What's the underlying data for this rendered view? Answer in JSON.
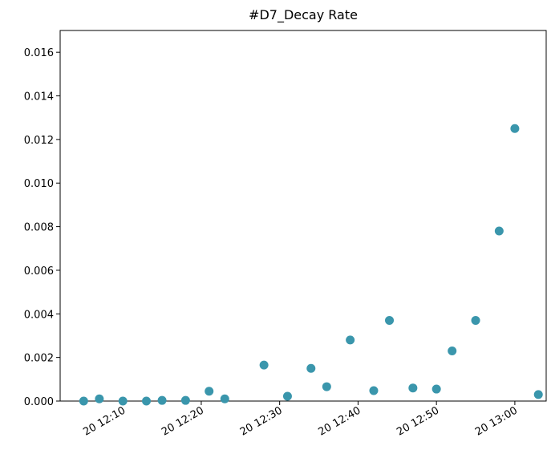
{
  "chart_data": {
    "type": "scatter",
    "title": "#D7_Decay Rate",
    "color": "#3a96ac",
    "x": [
      "20 12:05",
      "20 12:07",
      "20 12:10",
      "20 12:13",
      "20 12:15",
      "20 12:18",
      "20 12:21",
      "20 12:23",
      "20 12:28",
      "20 12:31",
      "20 12:34",
      "20 12:36",
      "20 12:39",
      "20 12:42",
      "20 12:44",
      "20 12:47",
      "20 12:50",
      "20 12:52",
      "20 12:55",
      "20 12:58",
      "20 13:00",
      "20 13:03"
    ],
    "values": [
      0,
      0.0001,
      0,
      0,
      3e-05,
      3e-05,
      0.00045,
      0.0001,
      0.00165,
      0.00022,
      0.0015,
      0.00066,
      0.0028,
      0.00048,
      0.0037,
      0.0006,
      0.00055,
      0.0023,
      0.0037,
      0.0078,
      0.0125,
      0.0003
    ],
    "xlim": [
      "20 12:02",
      "20 13:04"
    ],
    "xticks": [
      "20 12:10",
      "20 12:20",
      "20 12:30",
      "20 12:40",
      "20 12:50",
      "20 13:00"
    ],
    "ylim": [
      0,
      0.017
    ],
    "yticks": [
      {
        "value": 0,
        "label": "0.000"
      },
      {
        "value": 0.002,
        "label": "0.002"
      },
      {
        "value": 0.004,
        "label": "0.004"
      },
      {
        "value": 0.006,
        "label": "0.006"
      },
      {
        "value": 0.008,
        "label": "0.008"
      },
      {
        "value": 0.01,
        "label": "0.010"
      },
      {
        "value": 0.012,
        "label": "0.012"
      },
      {
        "value": 0.014,
        "label": "0.014"
      },
      {
        "value": 0.016,
        "label": "0.016"
      }
    ]
  }
}
